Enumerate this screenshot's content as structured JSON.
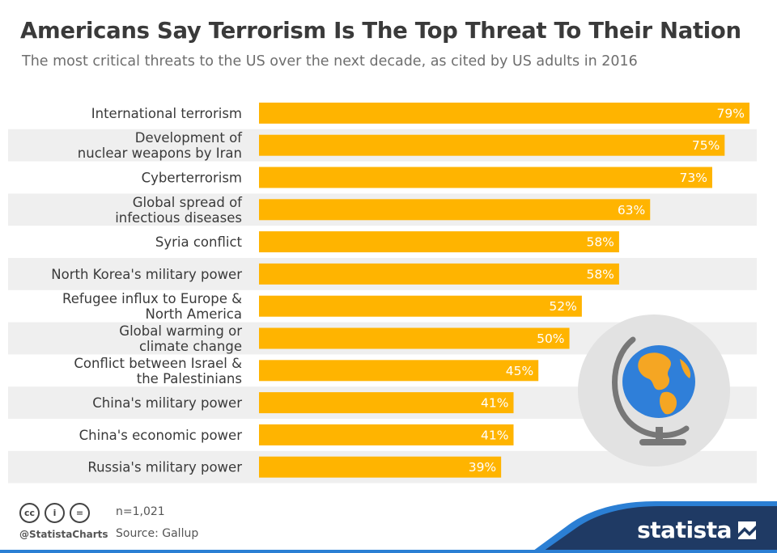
{
  "title": "Americans Say Terrorism Is The Top Threat To Their Nation",
  "subtitle": "The most critical threats to the US over the next decade, as cited by US adults in 2016",
  "colors": {
    "bar": "#ffb400",
    "stripe": "#efefef",
    "footer_blue": "#1f3a64",
    "footer_accent": "#2b7fd4",
    "globe_ocean": "#2f7fd9",
    "globe_land": "#f5a623",
    "globe_stand": "#777777",
    "globe_bg": "#e2e2e2"
  },
  "chart_data": {
    "type": "bar",
    "orientation": "horizontal",
    "title": "Americans Say Terrorism Is The Top Threat To Their Nation",
    "categories": [
      [
        "International terrorism"
      ],
      [
        "Development of",
        "nuclear weapons by Iran"
      ],
      [
        "Cyberterrorism"
      ],
      [
        "Global spread of",
        "infectious diseases"
      ],
      [
        "Syria conflict"
      ],
      [
        "North Korea's military power"
      ],
      [
        "Refugee influx to Europe &",
        "North America"
      ],
      [
        "Global warming or",
        "climate change"
      ],
      [
        "Conflict between Israel &",
        "the Palestinians"
      ],
      [
        "China's military power"
      ],
      [
        "China's economic power"
      ],
      [
        "Russia's military power"
      ]
    ],
    "values": [
      79,
      75,
      73,
      63,
      58,
      58,
      52,
      50,
      45,
      41,
      41,
      39
    ],
    "value_labels": [
      "79%",
      "75%",
      "73%",
      "63%",
      "58%",
      "58%",
      "52%",
      "50%",
      "45%",
      "41%",
      "41%",
      "39%"
    ],
    "unit": "%",
    "xlim": [
      0,
      80
    ],
    "grid": false,
    "legend": "none"
  },
  "footer": {
    "cc_icons": [
      "cc-icon",
      "by-icon",
      "nd-icon"
    ],
    "cc_labels": [
      "cc",
      "i",
      "="
    ],
    "handle": "@StatistaCharts",
    "note": "n=1,021",
    "source": "Source: Gallup",
    "brand": "statista"
  }
}
